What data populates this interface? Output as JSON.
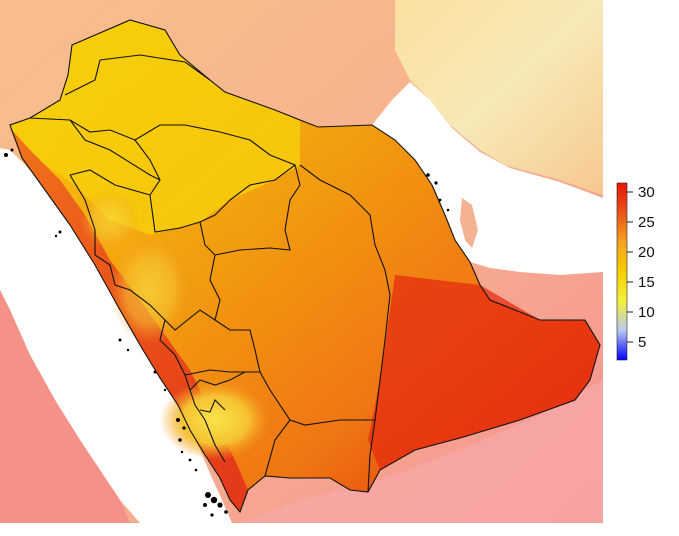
{
  "map": {
    "colors": {
      "surroundings_land": "#f7b48e",
      "surroundings_hot": "#f58c86",
      "sea": "#ffffff",
      "north_warm": "#f9d860",
      "north_yellow": "#f7cf0b",
      "central": "#f4a30c",
      "east": "#f18a0e",
      "southeast_hot": "#e42a10",
      "southwest_highland": "#f6dd3a",
      "west_hot": "#e84c18",
      "border_line": "#111111",
      "islands": "#000000"
    },
    "region_count": 13
  },
  "legend": {
    "gradient_stops": [
      "#0000ff",
      "#b9c8ef",
      "#f1f13a",
      "#f8ce00",
      "#f3a21f",
      "#ea5318",
      "#e61607"
    ],
    "min": 2,
    "max": 31.5,
    "ticks": [
      {
        "value": 5,
        "label": "5"
      },
      {
        "value": 10,
        "label": "10"
      },
      {
        "value": 15,
        "label": "15"
      },
      {
        "value": 20,
        "label": "20"
      },
      {
        "value": 25,
        "label": "25"
      },
      {
        "value": 30,
        "label": "30"
      }
    ]
  }
}
